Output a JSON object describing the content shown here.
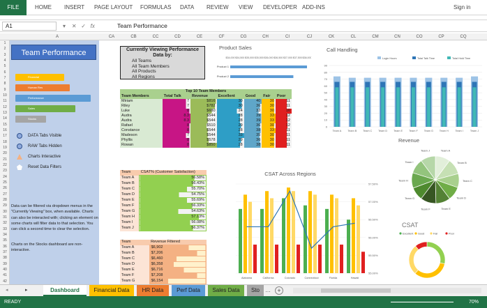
{
  "ribbon": {
    "file": "FILE",
    "tabs": [
      "HOME",
      "INSERT",
      "PAGE LAYOUT",
      "FORMULAS",
      "DATA",
      "REVIEW",
      "VIEW",
      "DEVELOPER",
      "ADD-INS"
    ],
    "signin": "Sign in"
  },
  "formula_bar": {
    "name_box": "A1",
    "fx": "fx",
    "value": "Team Performance"
  },
  "columns": [
    "A",
    "CA",
    "CB",
    "CC",
    "CD",
    "CE",
    "CF",
    "CG",
    "CH",
    "CI",
    "CJ",
    "CK",
    "CL",
    "CM",
    "CN",
    "CO",
    "CP",
    "CQ"
  ],
  "rows": [
    "1",
    "2",
    "3",
    "4",
    "5",
    "6",
    "7",
    "8",
    "9",
    "10",
    "11",
    "12",
    "13",
    "14",
    "15",
    "16",
    "17",
    "18",
    "19",
    "20",
    "21",
    "22",
    "23",
    "24",
    "25",
    "26",
    "27",
    "28",
    "29",
    "30",
    "31",
    "32",
    "33",
    "34",
    "35",
    "36",
    "37",
    "38",
    "39",
    "40",
    "41",
    "42"
  ],
  "sidebar": {
    "title": "Team Performance",
    "buttons": [
      {
        "label": "Financial",
        "color": "#ffc000"
      },
      {
        "label": "Human Res",
        "color": "#ed7d31"
      },
      {
        "label": "Performance",
        "color": "#5b9bd5"
      },
      {
        "label": "Sales",
        "color": "#70ad47"
      },
      {
        "label": "Stocks",
        "color": "#a5a5a5"
      }
    ],
    "options": [
      {
        "label": "DATA Tabs Visible",
        "icon": "circle-icon"
      },
      {
        "label": "RAW Tabs Hidden",
        "icon": "circle-icon"
      },
      {
        "label": "Charts Interactive",
        "icon": "triangle-icon"
      },
      {
        "label": "Reset Data Filters",
        "icon": "pentagon-icon"
      }
    ],
    "note1": "Data can be filtered via dropdown menus in the \"Currently Viewing\" box, when available. Charts can also be interacted with; clicking an element on some charts will filter data to that selection. You can click a second time to clear the selection.",
    "note2": "Charts on the Stocks dashboard are non-interactive."
  },
  "viewing": {
    "title": "Currently Viewing Performance Data by:",
    "items": [
      "All Teams",
      "All Team Members",
      "All Products",
      "All Regions"
    ]
  },
  "top10": {
    "title": "Top 10 Team Members",
    "headers": [
      "Team Members",
      "Total Talk",
      "Revenue",
      "Excellent",
      "Good",
      "Fair",
      "Poor"
    ],
    "rows": [
      [
        "Miriam",
        "7",
        "$816",
        "30",
        "40",
        "30",
        "11"
      ],
      [
        "Riley",
        "7",
        "$782",
        "30",
        "36",
        "30",
        "11"
      ],
      [
        "Luke",
        "8",
        "$680",
        "24",
        "33",
        "30",
        "16"
      ],
      [
        "Audra",
        "8.3",
        "$544",
        "28",
        "39",
        "33",
        "12"
      ],
      [
        "Audra",
        "8.3",
        "$544",
        "28",
        "39",
        "33",
        "12"
      ],
      [
        "Rafael",
        "8",
        "$510",
        "29",
        "36",
        "30",
        "12"
      ],
      [
        "Constance",
        "8",
        "$544",
        "28",
        "38",
        "33",
        "11"
      ],
      [
        "Madeson",
        "7",
        "$544",
        "33",
        "35",
        "30",
        "11"
      ],
      [
        "Phyllis",
        "8",
        "$578",
        "29",
        "36",
        "30",
        "11"
      ],
      [
        "Rowan",
        "8",
        "$850",
        "28",
        "38",
        "30",
        "11"
      ]
    ]
  },
  "csat_table": {
    "headers": [
      "Team",
      "CSAT% (Customer Satisfaction)"
    ],
    "rows": [
      [
        "Team A",
        "56.58%"
      ],
      [
        "Team B",
        "56.43%"
      ],
      [
        "Team C",
        "55.70%"
      ],
      [
        "Team D",
        "54.75%"
      ],
      [
        "Team E",
        "55.69%"
      ],
      [
        "Team F",
        "56.33%"
      ],
      [
        "Team G",
        "54.63%"
      ],
      [
        "Team H",
        "57.13%"
      ],
      [
        "Team I",
        "56.08%"
      ],
      [
        "Team J",
        "56.37%"
      ]
    ]
  },
  "revenue_table": {
    "headers": [
      "Team",
      "Revenue Filtered"
    ],
    "rows": [
      [
        "Team A",
        "$6,902"
      ],
      [
        "Team B",
        "$7,206"
      ],
      [
        "Team C",
        "$6,460"
      ],
      [
        "Team D",
        "$6,358"
      ],
      [
        "Team E",
        "$6,716"
      ],
      [
        "Team F",
        "$7,208"
      ],
      [
        "Team G",
        "$6,154"
      ]
    ]
  },
  "chart_data": [
    {
      "type": "bar",
      "title": "Product Sales",
      "orientation": "horizontal",
      "categories": [
        "Product 1",
        "Product 2"
      ],
      "values": [
        38500,
        37700
      ],
      "xticks": [
        "$34,000",
        "$34,500",
        "$35,000",
        "$35,500",
        "$36,000",
        "$36,500",
        "$37,000",
        "$37,500",
        "$38,000"
      ],
      "xlim": [
        34000,
        38500
      ]
    },
    {
      "type": "bar",
      "title": "Call Handling",
      "categories": [
        "Team A",
        "Team B",
        "Team C",
        "Team D",
        "Team E",
        "Team F",
        "Team G",
        "Team H",
        "Team I",
        "Team J"
      ],
      "series": [
        {
          "name": "Login Hours",
          "values": [
            74,
            72,
            72,
            72,
            72,
            72,
            72,
            72,
            72,
            74
          ],
          "color": "#9dc3e6"
        },
        {
          "name": "Total Talk Time",
          "values": [
            66,
            66,
            66,
            66,
            66,
            66,
            66,
            66,
            66,
            66
          ],
          "color": "#2e75b6"
        },
        {
          "name": "Total Hold Time",
          "values": [
            58,
            58,
            58,
            58,
            58,
            58,
            58,
            58,
            58,
            58
          ],
          "color": "#41b8b6"
        }
      ],
      "ylim": [
        0,
        90
      ],
      "yticks": [
        "0",
        "10",
        "20",
        "30",
        "40",
        "50",
        "60",
        "70",
        "80",
        "90"
      ]
    },
    {
      "type": "pie",
      "title": "Revenue",
      "categories": [
        "Team A",
        "Team B",
        "Team C",
        "Team D",
        "Team E",
        "Team F",
        "Team G",
        "Team H",
        "Team I",
        "Team J"
      ],
      "values": [
        6902,
        7206,
        6460,
        6358,
        6716,
        7208,
        6154,
        7100,
        6800,
        6900
      ]
    },
    {
      "type": "bar",
      "title": "CSAT Across Regions",
      "categories": [
        "Alabama",
        "California",
        "Colorado",
        "Connecticut",
        "Florida",
        "Hawaii"
      ],
      "series": [
        {
          "name": "Excellent",
          "values": [
            56.8,
            56.8,
            57.1,
            56.9,
            56.8,
            56.5
          ],
          "color": "#4caf50"
        },
        {
          "name": "Good",
          "values": [
            57.2,
            57.3,
            57.4,
            57.3,
            57.2,
            57.1
          ],
          "color": "#ffc000"
        },
        {
          "name": "Fair",
          "values": [
            57.0,
            57.1,
            57.3,
            57.2,
            57.1,
            56.9
          ],
          "color": "#ffd966"
        },
        {
          "name": "Poor",
          "values": [
            55.8,
            55.8,
            55.8,
            55.8,
            55.8,
            55.6
          ],
          "color": "#e02020"
        }
      ],
      "line": {
        "values": [
          56.3,
          56.3,
          57.3,
          55.7,
          56.3,
          56.4
        ],
        "color": "#2e75b6"
      },
      "ylim": [
        55.0,
        57.5
      ],
      "yticks": [
        "55.00%",
        "55.50%",
        "56.00%",
        "56.50%",
        "57.00%",
        "57.50%"
      ]
    },
    {
      "type": "pie",
      "title": "CSAT",
      "legend": [
        "Excellent",
        "Good",
        "Fair",
        "Poor"
      ],
      "categories": [
        "Excellent",
        "Good",
        "Fair",
        "Poor"
      ],
      "values": [
        31,
        36,
        30,
        12
      ]
    }
  ],
  "sheet_tabs": [
    {
      "label": "Dashboard",
      "color": "#217346",
      "active": true
    },
    {
      "label": "Financial Data",
      "color": "#ffc000"
    },
    {
      "label": "HR Data",
      "color": "#ed7d31"
    },
    {
      "label": "Perf Data",
      "color": "#5b9bd5"
    },
    {
      "label": "Sales Data",
      "color": "#70ad47"
    },
    {
      "label": "Sto",
      "color": "#a5a5a5"
    }
  ],
  "status": {
    "ready": "READY",
    "zoom": "70%"
  }
}
